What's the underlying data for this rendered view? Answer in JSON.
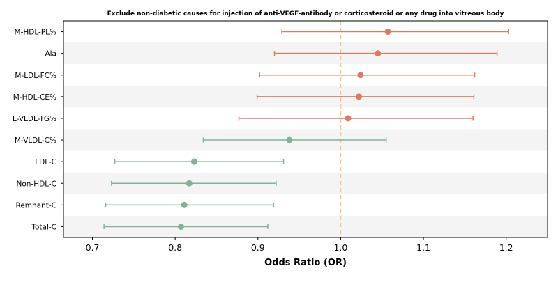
{
  "chart_data": {
    "type": "forest",
    "title": "Exclude non-diabetic causes for injection of anti-VEGF-antibody or corticosteroid or any drug into vitreous body",
    "xlabel": "Odds Ratio (OR)",
    "ylabel": "",
    "xlim": [
      0.665,
      1.25
    ],
    "xticks": [
      0.7,
      0.8,
      0.9,
      1.0,
      1.1,
      1.2
    ],
    "xtick_labels": [
      "0.7",
      "0.8",
      "0.9",
      "1.0",
      "1.1",
      "1.2"
    ],
    "reference_line": 1.0,
    "reference_color": "#f0c890",
    "positive_color": "#e07a5f",
    "negative_color": "#81b29a",
    "stripe_color": "#f4f4f4",
    "rows": [
      {
        "label": "M-HDL-PL%",
        "or": 1.057,
        "lower": 0.929,
        "upper": 1.203,
        "direction": "positive"
      },
      {
        "label": "Ala",
        "or": 1.045,
        "lower": 0.92,
        "upper": 1.189,
        "direction": "positive"
      },
      {
        "label": "M-LDL-FC%",
        "or": 1.024,
        "lower": 0.902,
        "upper": 1.162,
        "direction": "positive"
      },
      {
        "label": "M-HDL-CE%",
        "or": 1.022,
        "lower": 0.899,
        "upper": 1.161,
        "direction": "positive"
      },
      {
        "label": "L-VLDL-TG%",
        "or": 1.009,
        "lower": 0.877,
        "upper": 1.16,
        "direction": "positive"
      },
      {
        "label": "M-VLDL-C%",
        "or": 0.938,
        "lower": 0.834,
        "upper": 1.055,
        "direction": "negative"
      },
      {
        "label": "LDL-C",
        "or": 0.823,
        "lower": 0.727,
        "upper": 0.931,
        "direction": "negative"
      },
      {
        "label": "Non-HDL-C",
        "or": 0.817,
        "lower": 0.723,
        "upper": 0.922,
        "direction": "negative"
      },
      {
        "label": "Remnant-C",
        "or": 0.811,
        "lower": 0.716,
        "upper": 0.919,
        "direction": "negative"
      },
      {
        "label": "Total-C",
        "or": 0.807,
        "lower": 0.714,
        "upper": 0.912,
        "direction": "negative"
      }
    ]
  }
}
